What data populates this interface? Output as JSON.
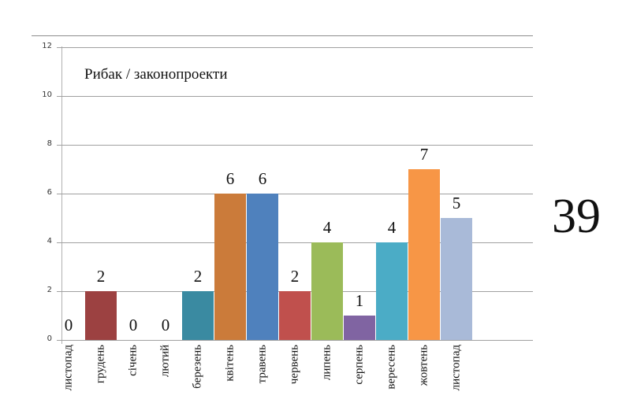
{
  "chart_data": {
    "type": "bar",
    "title": "Рибак / законопроекти",
    "xlabel": "",
    "ylabel": "",
    "ylim": [
      0,
      12
    ],
    "yticks": [
      0,
      2,
      4,
      6,
      8,
      10,
      12
    ],
    "grid": true,
    "legend": "none",
    "categories": [
      "листопад",
      "грудень",
      "січень",
      "лютий",
      "березень",
      "квітень",
      "травень",
      "червень",
      "липень",
      "серпень",
      "вересень",
      "жовтень",
      "листопад"
    ],
    "values": [
      0,
      2,
      0,
      0,
      2,
      6,
      6,
      2,
      4,
      1,
      4,
      7,
      5
    ],
    "colors": [
      "#4f81bd",
      "#9c4141",
      "#4f81bd",
      "#4f81bd",
      "#3a8aa1",
      "#cb7b3a",
      "#4f81bd",
      "#c0504d",
      "#9bbb59",
      "#8064a2",
      "#4bacc6",
      "#f79646",
      "#a9bad8"
    ],
    "annotations": [
      {
        "text": "39",
        "position": "right",
        "meaning": "total"
      }
    ]
  },
  "total": "39"
}
